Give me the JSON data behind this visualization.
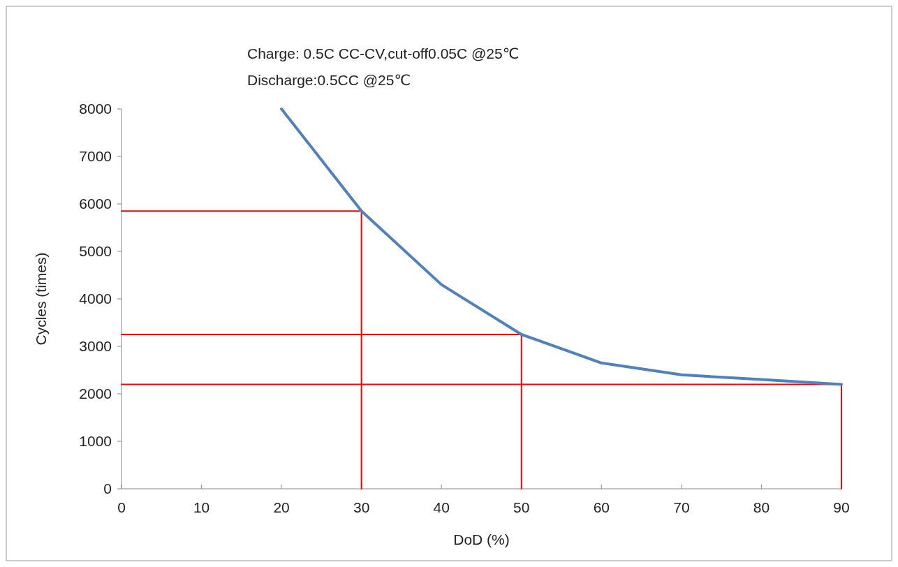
{
  "chart_data": {
    "type": "line",
    "xlabel": "DoD (%)",
    "ylabel": "Cycles (times)",
    "annotations": [
      "Charge: 0.5C CC-CV,cut-off0.05C @25℃",
      "Discharge:0.5CC  @25℃"
    ],
    "xlim": [
      0,
      90
    ],
    "ylim": [
      0,
      8000
    ],
    "xticks": [
      0,
      10,
      20,
      30,
      40,
      50,
      60,
      70,
      80,
      90
    ],
    "yticks": [
      0,
      1000,
      2000,
      3000,
      4000,
      5000,
      6000,
      7000,
      8000
    ],
    "grid": false,
    "marker": "none",
    "line_style": "solid",
    "series": [
      {
        "color": "#4f81bd",
        "x": [
          20,
          30,
          40,
          50,
          60,
          70,
          80,
          90
        ],
        "values": [
          8000,
          5850,
          4300,
          3250,
          2650,
          2400,
          2300,
          2200
        ]
      },
      {
        "color": "#ff0000",
        "x": [
          0,
          30,
          30
        ],
        "values": [
          5850,
          5850,
          0
        ]
      },
      {
        "color": "#ff0000",
        "x": [
          0,
          50,
          50
        ],
        "values": [
          3250,
          3250,
          0
        ]
      },
      {
        "color": "#ff0000",
        "x": [
          0,
          90,
          90
        ],
        "values": [
          2200,
          2200,
          0
        ]
      }
    ]
  }
}
